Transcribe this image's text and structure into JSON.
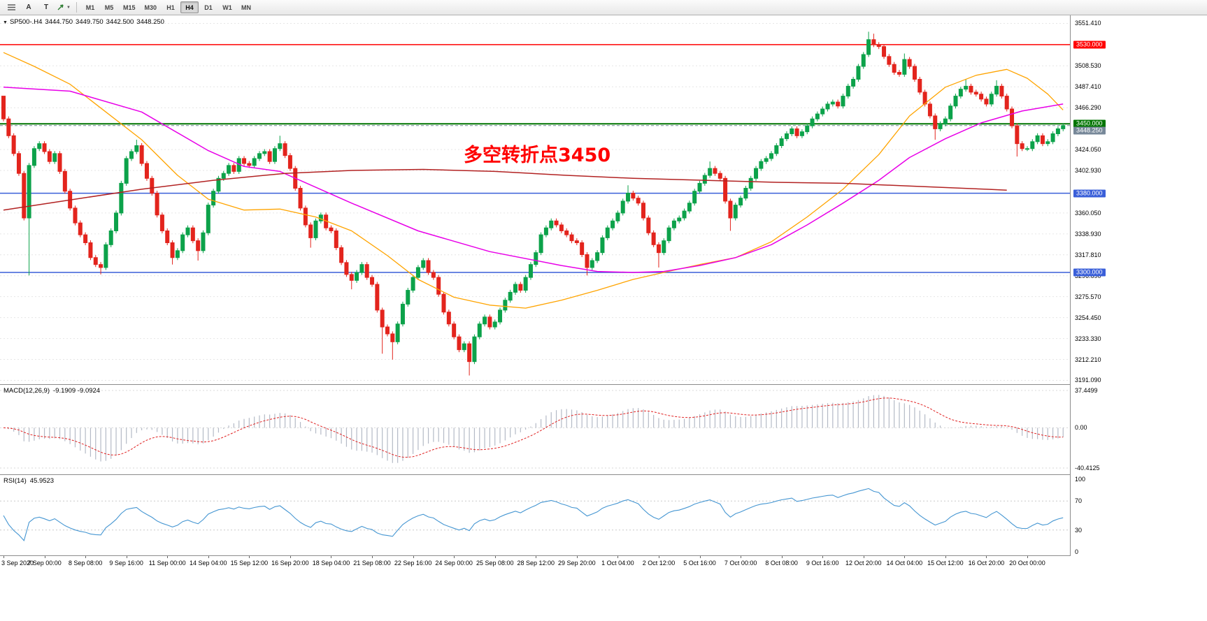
{
  "toolbar": {
    "icons": [
      {
        "name": "line-studies-icon",
        "type": "lines"
      },
      {
        "name": "text-tool-a-icon",
        "type": "glyph",
        "glyph": "A"
      },
      {
        "name": "text-tool-t-icon",
        "type": "glyph",
        "glyph": "T"
      },
      {
        "name": "arrows-tool-icon",
        "type": "arrow"
      }
    ],
    "timeframes": [
      "M1",
      "M5",
      "M15",
      "M30",
      "H1",
      "H4",
      "D1",
      "W1",
      "MN"
    ],
    "active_timeframe": "H4"
  },
  "chart": {
    "title": "SP500-.H4",
    "ohlc": {
      "open": "3444.750",
      "high": "3449.750",
      "low": "3442.500",
      "close": "3448.250"
    },
    "annotation": {
      "text": "多空转折点3450",
      "color": "#FF0000"
    }
  },
  "chart_data": {
    "type": "candlestick",
    "symbol": "SP500-",
    "timeframe": "H4",
    "title": "SP500-.H4 3444.750 3449.750 3442.500 3448.250",
    "bars_total": 208,
    "label_every_n_bars": 8,
    "x_labels": [
      "3 Sep 2020",
      "7 Sep 00:00",
      "8 Sep 08:00",
      "9 Sep 16:00",
      "11 Sep 00:00",
      "14 Sep 04:00",
      "15 Sep 12:00",
      "16 Sep 20:00",
      "18 Sep 04:00",
      "21 Sep 08:00",
      "22 Sep 16:00",
      "24 Sep 00:00",
      "25 Sep 08:00",
      "28 Sep 12:00",
      "29 Sep 20:00",
      "1 Oct 04:00",
      "2 Oct 12:00",
      "5 Oct 16:00",
      "7 Oct 00:00",
      "8 Oct 08:00",
      "9 Oct 16:00",
      "12 Oct 20:00",
      "14 Oct 04:00",
      "15 Oct 12:00",
      "16 Oct 20:00",
      "20 Oct 00:00"
    ],
    "y_range": {
      "top": 3559.5,
      "bottom": 3186.5
    },
    "first_open": 3478,
    "closes": [
      3455,
      3438,
      3420,
      3400,
      3355,
      3408,
      3425,
      3430,
      3422,
      3412,
      3420,
      3402,
      3382,
      3365,
      3350,
      3338,
      3330,
      3315,
      3308,
      3305,
      3328,
      3342,
      3360,
      3390,
      3415,
      3422,
      3428,
      3410,
      3395,
      3380,
      3358,
      3342,
      3330,
      3315,
      3322,
      3338,
      3345,
      3332,
      3322,
      3340,
      3368,
      3382,
      3395,
      3400,
      3408,
      3402,
      3415,
      3410,
      3408,
      3415,
      3420,
      3422,
      3412,
      3425,
      3430,
      3418,
      3405,
      3385,
      3365,
      3348,
      3335,
      3352,
      3358,
      3345,
      3342,
      3325,
      3310,
      3298,
      3292,
      3300,
      3308,
      3295,
      3288,
      3262,
      3245,
      3238,
      3230,
      3248,
      3268,
      3282,
      3295,
      3305,
      3312,
      3300,
      3295,
      3278,
      3260,
      3248,
      3235,
      3222,
      3228,
      3210,
      3235,
      3248,
      3255,
      3245,
      3250,
      3262,
      3272,
      3280,
      3288,
      3282,
      3295,
      3308,
      3320,
      3338,
      3345,
      3352,
      3348,
      3342,
      3338,
      3332,
      3330,
      3318,
      3305,
      3312,
      3320,
      3335,
      3345,
      3352,
      3360,
      3372,
      3380,
      3375,
      3370,
      3355,
      3340,
      3328,
      3320,
      3332,
      3345,
      3352,
      3355,
      3362,
      3370,
      3382,
      3390,
      3398,
      3405,
      3400,
      3395,
      3372,
      3355,
      3368,
      3375,
      3385,
      3395,
      3405,
      3412,
      3415,
      3420,
      3428,
      3435,
      3440,
      3445,
      3438,
      3442,
      3448,
      3455,
      3460,
      3465,
      3470,
      3472,
      3468,
      3478,
      3488,
      3495,
      3508,
      3520,
      3535,
      3530,
      3528,
      3518,
      3510,
      3502,
      3500,
      3515,
      3508,
      3495,
      3482,
      3470,
      3458,
      3445,
      3450,
      3455,
      3468,
      3478,
      3485,
      3488,
      3482,
      3480,
      3475,
      3470,
      3480,
      3488,
      3478,
      3465,
      3448,
      3430,
      3425,
      3425,
      3432,
      3438,
      3430,
      3432,
      3440,
      3445,
      3448.25
    ],
    "wick_low_overrides": {
      "5": 3297,
      "19": 3298,
      "33": 3308,
      "38": 3312,
      "60": 3325,
      "68": 3283,
      "74": 3218,
      "76": 3212,
      "91": 3196,
      "114": 3297,
      "128": 3305,
      "142": 3342,
      "182": 3434,
      "198": 3417
    },
    "wick_high_overrides": {
      "0": 3478,
      "26": 3434,
      "54": 3438,
      "122": 3388,
      "138": 3412,
      "169": 3543,
      "170": 3541,
      "176": 3521,
      "188": 3495,
      "194": 3494
    },
    "ma_lines": [
      {
        "name": "ma-fast-orange",
        "color": "#FFA400",
        "width": 1.3,
        "points": [
          [
            0,
            3522
          ],
          [
            6,
            3508
          ],
          [
            13,
            3490
          ],
          [
            20,
            3462
          ],
          [
            27,
            3434
          ],
          [
            34,
            3398
          ],
          [
            40,
            3374
          ],
          [
            47,
            3363
          ],
          [
            54,
            3364
          ],
          [
            61,
            3356
          ],
          [
            68,
            3342
          ],
          [
            75,
            3317
          ],
          [
            81,
            3293
          ],
          [
            88,
            3275
          ],
          [
            95,
            3267
          ],
          [
            102,
            3264
          ],
          [
            109,
            3272
          ],
          [
            116,
            3282
          ],
          [
            123,
            3293
          ],
          [
            129,
            3300
          ],
          [
            136,
            3308
          ],
          [
            143,
            3315
          ],
          [
            150,
            3331
          ],
          [
            157,
            3356
          ],
          [
            164,
            3384
          ],
          [
            171,
            3419
          ],
          [
            177,
            3458
          ],
          [
            184,
            3487
          ],
          [
            190,
            3499
          ],
          [
            196,
            3505
          ],
          [
            200,
            3496
          ],
          [
            204,
            3480
          ],
          [
            207,
            3464
          ]
        ]
      },
      {
        "name": "ma-mid-magenta",
        "color": "#E800E8",
        "width": 1.5,
        "points": [
          [
            0,
            3487
          ],
          [
            13,
            3483
          ],
          [
            27,
            3462
          ],
          [
            40,
            3423
          ],
          [
            47,
            3407
          ],
          [
            54,
            3402
          ],
          [
            68,
            3370
          ],
          [
            81,
            3342
          ],
          [
            95,
            3321
          ],
          [
            109,
            3307
          ],
          [
            116,
            3301
          ],
          [
            123,
            3300
          ],
          [
            129,
            3301
          ],
          [
            136,
            3307
          ],
          [
            143,
            3315
          ],
          [
            150,
            3328
          ],
          [
            157,
            3348
          ],
          [
            164,
            3370
          ],
          [
            171,
            3393
          ],
          [
            177,
            3416
          ],
          [
            184,
            3435
          ],
          [
            191,
            3451
          ],
          [
            199,
            3463
          ],
          [
            207,
            3470
          ]
        ]
      },
      {
        "name": "ma-slow-darkred",
        "color": "#B22222",
        "width": 1.5,
        "points": [
          [
            0,
            3363
          ],
          [
            14,
            3374
          ],
          [
            27,
            3384
          ],
          [
            41,
            3393
          ],
          [
            55,
            3400
          ],
          [
            68,
            3403
          ],
          [
            82,
            3404
          ],
          [
            96,
            3402
          ],
          [
            110,
            3398
          ],
          [
            123,
            3395
          ],
          [
            137,
            3393
          ],
          [
            151,
            3391
          ],
          [
            164,
            3390
          ],
          [
            178,
            3387
          ],
          [
            192,
            3384
          ],
          [
            196,
            3383
          ]
        ]
      }
    ],
    "h_lines": [
      {
        "price": 3530,
        "color": "#FF0000",
        "width": 1.5,
        "label": "3530.000"
      },
      {
        "price": 3450,
        "color": "#007500",
        "width": 2,
        "label": "3450.000"
      },
      {
        "price": 3380,
        "color": "#3A5FD9",
        "width": 1.5,
        "label": "3380.000"
      },
      {
        "price": 3300,
        "color": "#3A5FD9",
        "width": 1.5,
        "label": "3300.000"
      }
    ],
    "current_price": {
      "price": 3448.25,
      "label": "3448.250",
      "color": "#778899"
    },
    "price_axis": {
      "ticks": [
        {
          "p": 3551.41,
          "t": "3551.410"
        },
        {
          "p": 3508.53,
          "t": "3508.530"
        },
        {
          "p": 3487.41,
          "t": "3487.410"
        },
        {
          "p": 3466.29,
          "t": "3466.290"
        },
        {
          "p": 3424.05,
          "t": "3424.050"
        },
        {
          "p": 3402.93,
          "t": "3402.930"
        },
        {
          "p": 3360.05,
          "t": "3360.050"
        },
        {
          "p": 3338.93,
          "t": "3338.930"
        },
        {
          "p": 3317.81,
          "t": "3317.810"
        },
        {
          "p": 3296.69,
          "t": "3296.690"
        },
        {
          "p": 3275.57,
          "t": "3275.570"
        },
        {
          "p": 3254.45,
          "t": "3254.450"
        },
        {
          "p": 3233.33,
          "t": "3233.330"
        },
        {
          "p": 3212.21,
          "t": "3212.210"
        },
        {
          "p": 3191.09,
          "t": "3191.090"
        }
      ]
    },
    "macd": {
      "label": "MACD(12,26,9)",
      "values_text": "-9.1909 -9.0924",
      "params": [
        12,
        26,
        9
      ],
      "axis": {
        "top": 37.4499,
        "zero": 0.0,
        "bottom": -40.4125
      },
      "axis_labels": [
        "37.4499",
        "0.00",
        "-40.4125"
      ],
      "hist_color": "#B4BAC6",
      "signal_color": "#E02020"
    },
    "rsi": {
      "label": "RSI(14)",
      "value_text": "45.9523",
      "period": 14,
      "levels": [
        70,
        30
      ],
      "axis_labels": [
        "100",
        "70",
        "30",
        "0"
      ],
      "line_color": "#4596D2"
    },
    "colors": {
      "up": "#0CA24A",
      "down": "#E3241D",
      "grid": "#E6E6E6"
    }
  }
}
